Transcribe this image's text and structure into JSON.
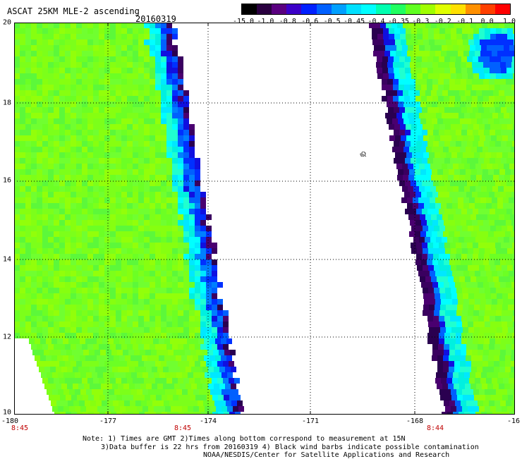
{
  "header": {
    "title": "ASCAT 25KM MLE-2 ascending",
    "date": "20160319"
  },
  "colorbar": {
    "labels": [
      "-15.0",
      "-1.0",
      "-0.8",
      "-0.6",
      "-0.5",
      "-0.45",
      "-0.4",
      "-0.35",
      "-0.3",
      "-0.2",
      "-0.1",
      "0.0",
      "1.0"
    ],
    "colors": [
      "#000000",
      "#6a0080",
      "#3c00c8",
      "#0020ff",
      "#0080ff",
      "#00d0ff",
      "#00ffff",
      "#00ff9a",
      "#50ff20",
      "#a0ff00",
      "#f0f000",
      "#ff9000",
      "#ff2000"
    ]
  },
  "axes": {
    "lat_labels": [
      "20",
      "18",
      "16",
      "14",
      "12",
      "10"
    ],
    "lon_labels": [
      "-180",
      "-177",
      "-174",
      "-171",
      "-168",
      "-16"
    ],
    "time_labels": [
      "8:45",
      "8:45",
      "8:44"
    ]
  },
  "annotation": {
    "symbol": "ଈ"
  },
  "notes": {
    "line1": "Note: 1) Times are GMT 2)Times along bottom correspond to measurement at 15N",
    "line2": "3)Data buffer is 22 hrs from 20160319 4) Black wind barbs indicate possible contamination",
    "line3": "NOAA/NESDIS/Center for Satellite Applications and Research"
  }
}
